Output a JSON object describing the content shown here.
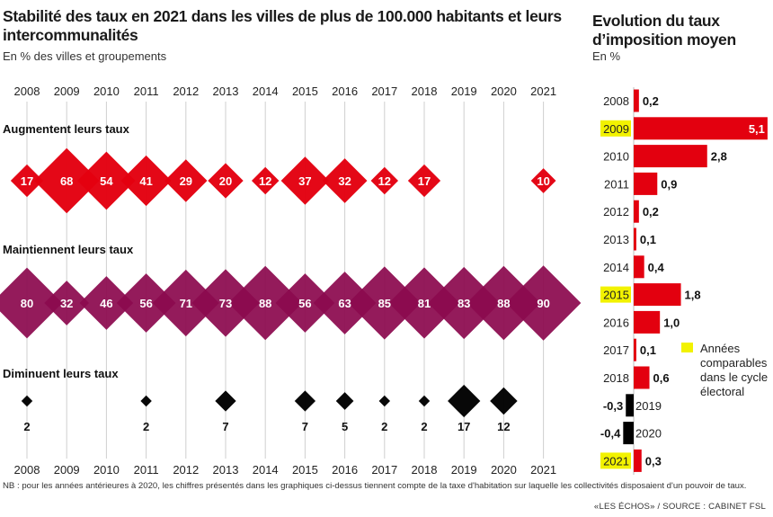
{
  "left_title": "Stabilité des taux en 2021 dans les villes de plus de 100.000 habitants et leurs intercommunalités",
  "left_subtitle": "En % des villes et groupements",
  "right_title": "Evolution du taux d’imposition moyen",
  "right_subtitle": "En %",
  "note": "NB : pour les années antérieures à 2020, les chiffres présentés dans les graphiques ci-dessus tiennent compte de la taxe d'habitation sur laquelle les collectivités disposaient d'un pouvoir de taux.",
  "source": "«LES ÉCHOS» / SOURCE : CABINET FSL",
  "chart_data": [
    {
      "type": "scatter",
      "title": "Stabilité des taux en 2021 dans les villes de plus de 100.000 habitants et leurs intercommunalités",
      "subtitle": "En % des villes et groupements",
      "years": [
        "2008",
        "2009",
        "2010",
        "2011",
        "2012",
        "2013",
        "2014",
        "2015",
        "2016",
        "2017",
        "2018",
        "2019",
        "2020",
        "2021"
      ],
      "series": [
        {
          "name": "Augmentent leurs taux",
          "color": "#e3000f",
          "values": [
            17,
            68,
            54,
            41,
            29,
            20,
            12,
            37,
            32,
            12,
            17,
            null,
            null,
            10
          ]
        },
        {
          "name": "Maintiennent leurs taux",
          "color": "#8c0a4f",
          "values": [
            80,
            32,
            46,
            56,
            71,
            73,
            88,
            56,
            63,
            85,
            81,
            83,
            88,
            90
          ]
        },
        {
          "name": "Diminuent leurs taux",
          "color": "#000000",
          "values": [
            2,
            null,
            null,
            2,
            null,
            7,
            null,
            7,
            5,
            2,
            2,
            17,
            12,
            null
          ]
        }
      ]
    },
    {
      "type": "bar",
      "title": "Evolution du taux d’imposition moyen",
      "subtitle": "En %",
      "categories": [
        "2008",
        "2009",
        "2010",
        "2011",
        "2012",
        "2013",
        "2014",
        "2015",
        "2016",
        "2017",
        "2018",
        "2019",
        "2020",
        "2021"
      ],
      "values": [
        0.2,
        5.1,
        2.8,
        0.9,
        0.2,
        0.1,
        0.4,
        1.8,
        1.0,
        0.1,
        0.6,
        -0.3,
        -0.4,
        0.3
      ],
      "value_labels": [
        "0,2",
        "5,1",
        "2,8",
        "0,9",
        "0,2",
        "0,1",
        "0,4",
        "1,8",
        "1,0",
        "0,1",
        "0,6",
        "-0,3",
        "-0,4",
        "0,3"
      ],
      "highlighted": [
        "2009",
        "2015",
        "2021"
      ],
      "legend": "Années comparables dans le cycle électoral",
      "positive_color": "#e3000f",
      "negative_color": "#000000",
      "highlight_color": "#f2f200"
    }
  ]
}
